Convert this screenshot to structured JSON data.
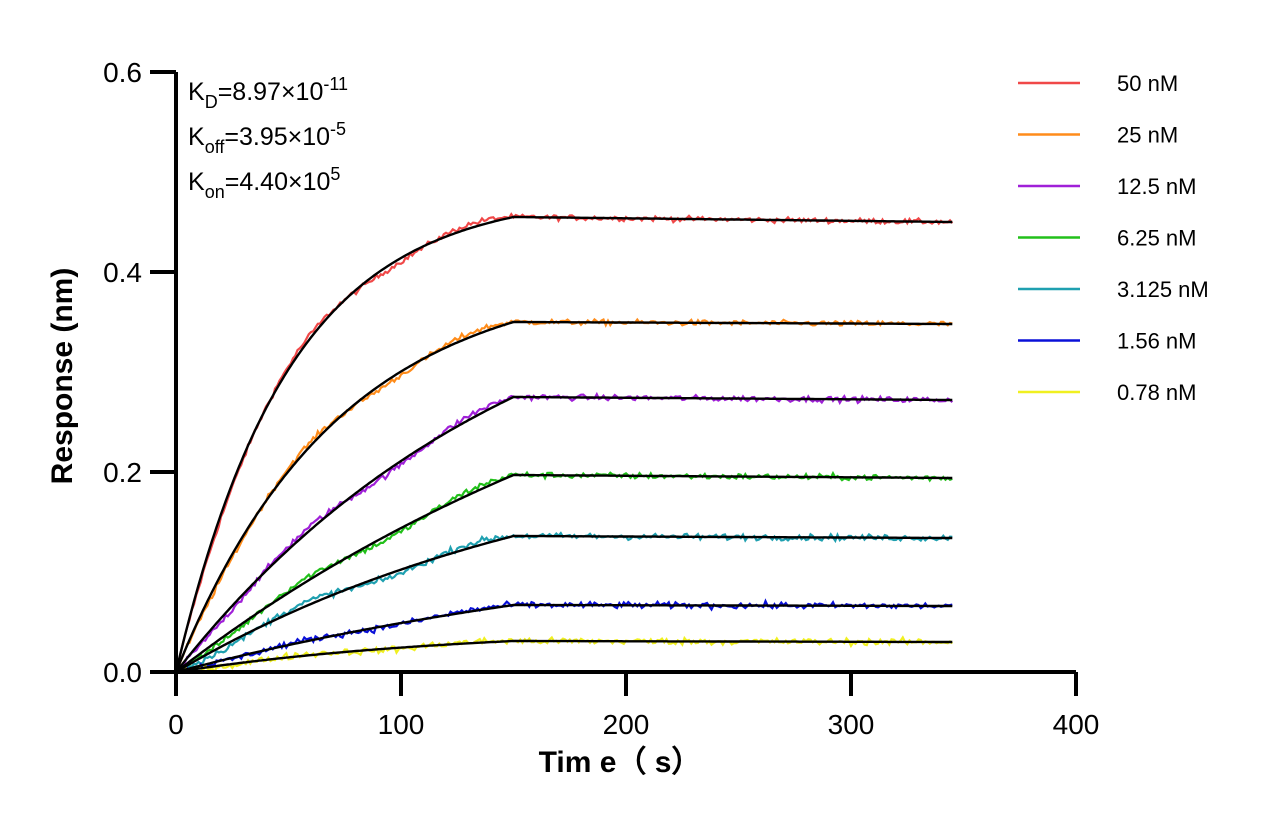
{
  "chart_data": {
    "type": "line",
    "xlabel": "Tim e（ s）",
    "ylabel": "Response (nm)",
    "xlim": [
      0,
      400
    ],
    "ylim": [
      0,
      0.6
    ],
    "xticks": [
      "0",
      "100",
      "200",
      "300",
      "400"
    ],
    "yticks": [
      "0.0",
      "0.2",
      "0.4",
      "0.6"
    ],
    "grid": false,
    "legend_position": "right",
    "association_end": 150,
    "dissociation_end": 345,
    "kinetics": [
      {
        "symbol": "K",
        "sub": "D",
        "value": "=8.97×10",
        "exp": "-11"
      },
      {
        "symbol": "K",
        "sub": "off",
        "value": "=3.95×10",
        "exp": "-5"
      },
      {
        "symbol": "K",
        "sub": "on",
        "value": "=4.40×10",
        "exp": "5"
      }
    ],
    "fit_color": "#000000",
    "series": [
      {
        "name": "50 nM",
        "color": "#f04848",
        "plateau": 0.455,
        "end": 0.45,
        "k": 0.02
      },
      {
        "name": "25 nM",
        "color": "#ff8c1a",
        "plateau": 0.35,
        "end": 0.348,
        "k": 0.014
      },
      {
        "name": "12.5 nM",
        "color": "#a020d8",
        "plateau": 0.275,
        "end": 0.272,
        "k": 0.0065
      },
      {
        "name": "6.25 nM",
        "color": "#22c01a",
        "plateau": 0.197,
        "end": 0.194,
        "k": 0.004
      },
      {
        "name": "3.125 nM",
        "color": "#1fa0b0",
        "plateau": 0.136,
        "end": 0.134,
        "k": 0.0055
      },
      {
        "name": "1.56 nM",
        "color": "#0a10d8",
        "plateau": 0.067,
        "end": 0.066,
        "k": 0.004
      },
      {
        "name": "0.78 nM",
        "color": "#f0f020",
        "plateau": 0.031,
        "end": 0.03,
        "k": 0.008
      }
    ]
  }
}
